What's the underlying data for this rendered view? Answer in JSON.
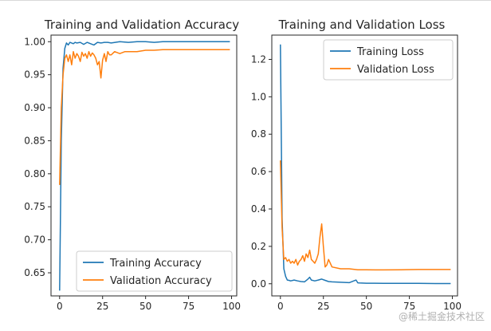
{
  "chart_data": [
    {
      "type": "line",
      "title": "Training and Validation Accuracy",
      "xlabel": "",
      "ylabel": "",
      "xlim": [
        -5,
        103
      ],
      "ylim": [
        0.615,
        1.01
      ],
      "xticks": [
        0,
        25,
        50,
        75,
        100
      ],
      "yticks": [
        0.65,
        0.7,
        0.75,
        0.8,
        0.85,
        0.9,
        0.95,
        1.0
      ],
      "ytick_labels": [
        "0.65",
        "0.70",
        "0.75",
        "0.80",
        "0.85",
        "0.90",
        "0.95",
        "1.00"
      ],
      "legend_position": "lower-right",
      "series": [
        {
          "name": "Training Accuracy",
          "color": "#1f77b4",
          "x": [
            0,
            1,
            2,
            3,
            4,
            5,
            6,
            7,
            8,
            9,
            10,
            12,
            14,
            16,
            18,
            20,
            22,
            24,
            26,
            28,
            30,
            35,
            40,
            45,
            50,
            55,
            60,
            65,
            70,
            75,
            80,
            85,
            90,
            95,
            99
          ],
          "y": [
            0.623,
            0.85,
            0.96,
            0.99,
            0.998,
            0.995,
            0.999,
            0.998,
            0.997,
            0.999,
            0.998,
            0.999,
            0.996,
            0.999,
            0.997,
            0.995,
            0.999,
            0.998,
            0.999,
            0.999,
            0.998,
            1.0,
            0.999,
            1.0,
            1.0,
            0.999,
            1.0,
            1.0,
            1.0,
            1.0,
            1.0,
            1.0,
            1.0,
            1.0,
            1.0
          ]
        },
        {
          "name": "Validation Accuracy",
          "color": "#ff7f0e",
          "x": [
            0,
            1,
            2,
            3,
            4,
            5,
            6,
            7,
            8,
            9,
            10,
            11,
            12,
            13,
            14,
            15,
            16,
            17,
            18,
            19,
            20,
            21,
            22,
            23,
            24,
            25,
            26,
            27,
            28,
            29,
            30,
            32,
            35,
            38,
            40,
            45,
            50,
            55,
            60,
            65,
            70,
            75,
            80,
            85,
            90,
            95,
            99
          ],
          "y": [
            0.783,
            0.9,
            0.95,
            0.975,
            0.98,
            0.97,
            0.98,
            0.965,
            0.985,
            0.975,
            0.982,
            0.978,
            0.97,
            0.984,
            0.978,
            0.982,
            0.975,
            0.985,
            0.978,
            0.983,
            0.98,
            0.975,
            0.965,
            0.97,
            0.945,
            0.972,
            0.982,
            0.97,
            0.985,
            0.98,
            0.98,
            0.985,
            0.982,
            0.985,
            0.985,
            0.985,
            0.987,
            0.987,
            0.988,
            0.988,
            0.988,
            0.988,
            0.988,
            0.988,
            0.988,
            0.988,
            0.988
          ]
        }
      ]
    },
    {
      "type": "line",
      "title": "Training and Validation Loss",
      "xlabel": "",
      "ylabel": "",
      "xlim": [
        -5,
        103
      ],
      "ylim": [
        -0.065,
        1.33
      ],
      "xticks": [
        0,
        25,
        50,
        75,
        100
      ],
      "yticks": [
        0.0,
        0.2,
        0.4,
        0.6,
        0.8,
        1.0,
        1.2
      ],
      "ytick_labels": [
        "0.0",
        "0.2",
        "0.4",
        "0.6",
        "0.8",
        "1.0",
        "1.2"
      ],
      "legend_position": "upper-right",
      "series": [
        {
          "name": "Training Loss",
          "color": "#1f77b4",
          "x": [
            0,
            1,
            2,
            3,
            4,
            5,
            6,
            8,
            10,
            12,
            14,
            16,
            17,
            18,
            20,
            22,
            24,
            26,
            28,
            30,
            35,
            40,
            44,
            45,
            46,
            50,
            55,
            60,
            70,
            80,
            90,
            99
          ],
          "y": [
            1.28,
            0.35,
            0.08,
            0.04,
            0.02,
            0.018,
            0.015,
            0.02,
            0.015,
            0.012,
            0.01,
            0.025,
            0.035,
            0.02,
            0.015,
            0.02,
            0.025,
            0.018,
            0.012,
            0.01,
            0.008,
            0.006,
            0.02,
            0.005,
            0.004,
            0.003,
            0.003,
            0.002,
            0.002,
            0.002,
            0.001,
            0.001
          ]
        },
        {
          "name": "Validation Loss",
          "color": "#ff7f0e",
          "x": [
            0,
            1,
            2,
            3,
            4,
            5,
            6,
            7,
            8,
            9,
            10,
            11,
            12,
            13,
            14,
            15,
            16,
            17,
            18,
            19,
            20,
            21,
            22,
            23,
            24,
            25,
            26,
            27,
            28,
            30,
            35,
            40,
            45,
            50,
            55,
            60,
            70,
            80,
            90,
            99
          ],
          "y": [
            0.66,
            0.3,
            0.13,
            0.14,
            0.12,
            0.13,
            0.11,
            0.12,
            0.11,
            0.13,
            0.1,
            0.12,
            0.13,
            0.15,
            0.12,
            0.16,
            0.14,
            0.18,
            0.13,
            0.12,
            0.11,
            0.13,
            0.16,
            0.25,
            0.32,
            0.2,
            0.09,
            0.1,
            0.13,
            0.09,
            0.08,
            0.08,
            0.075,
            0.075,
            0.074,
            0.074,
            0.075,
            0.076,
            0.076,
            0.076
          ]
        }
      ]
    }
  ],
  "watermark": "@稀土掘金技术社区"
}
